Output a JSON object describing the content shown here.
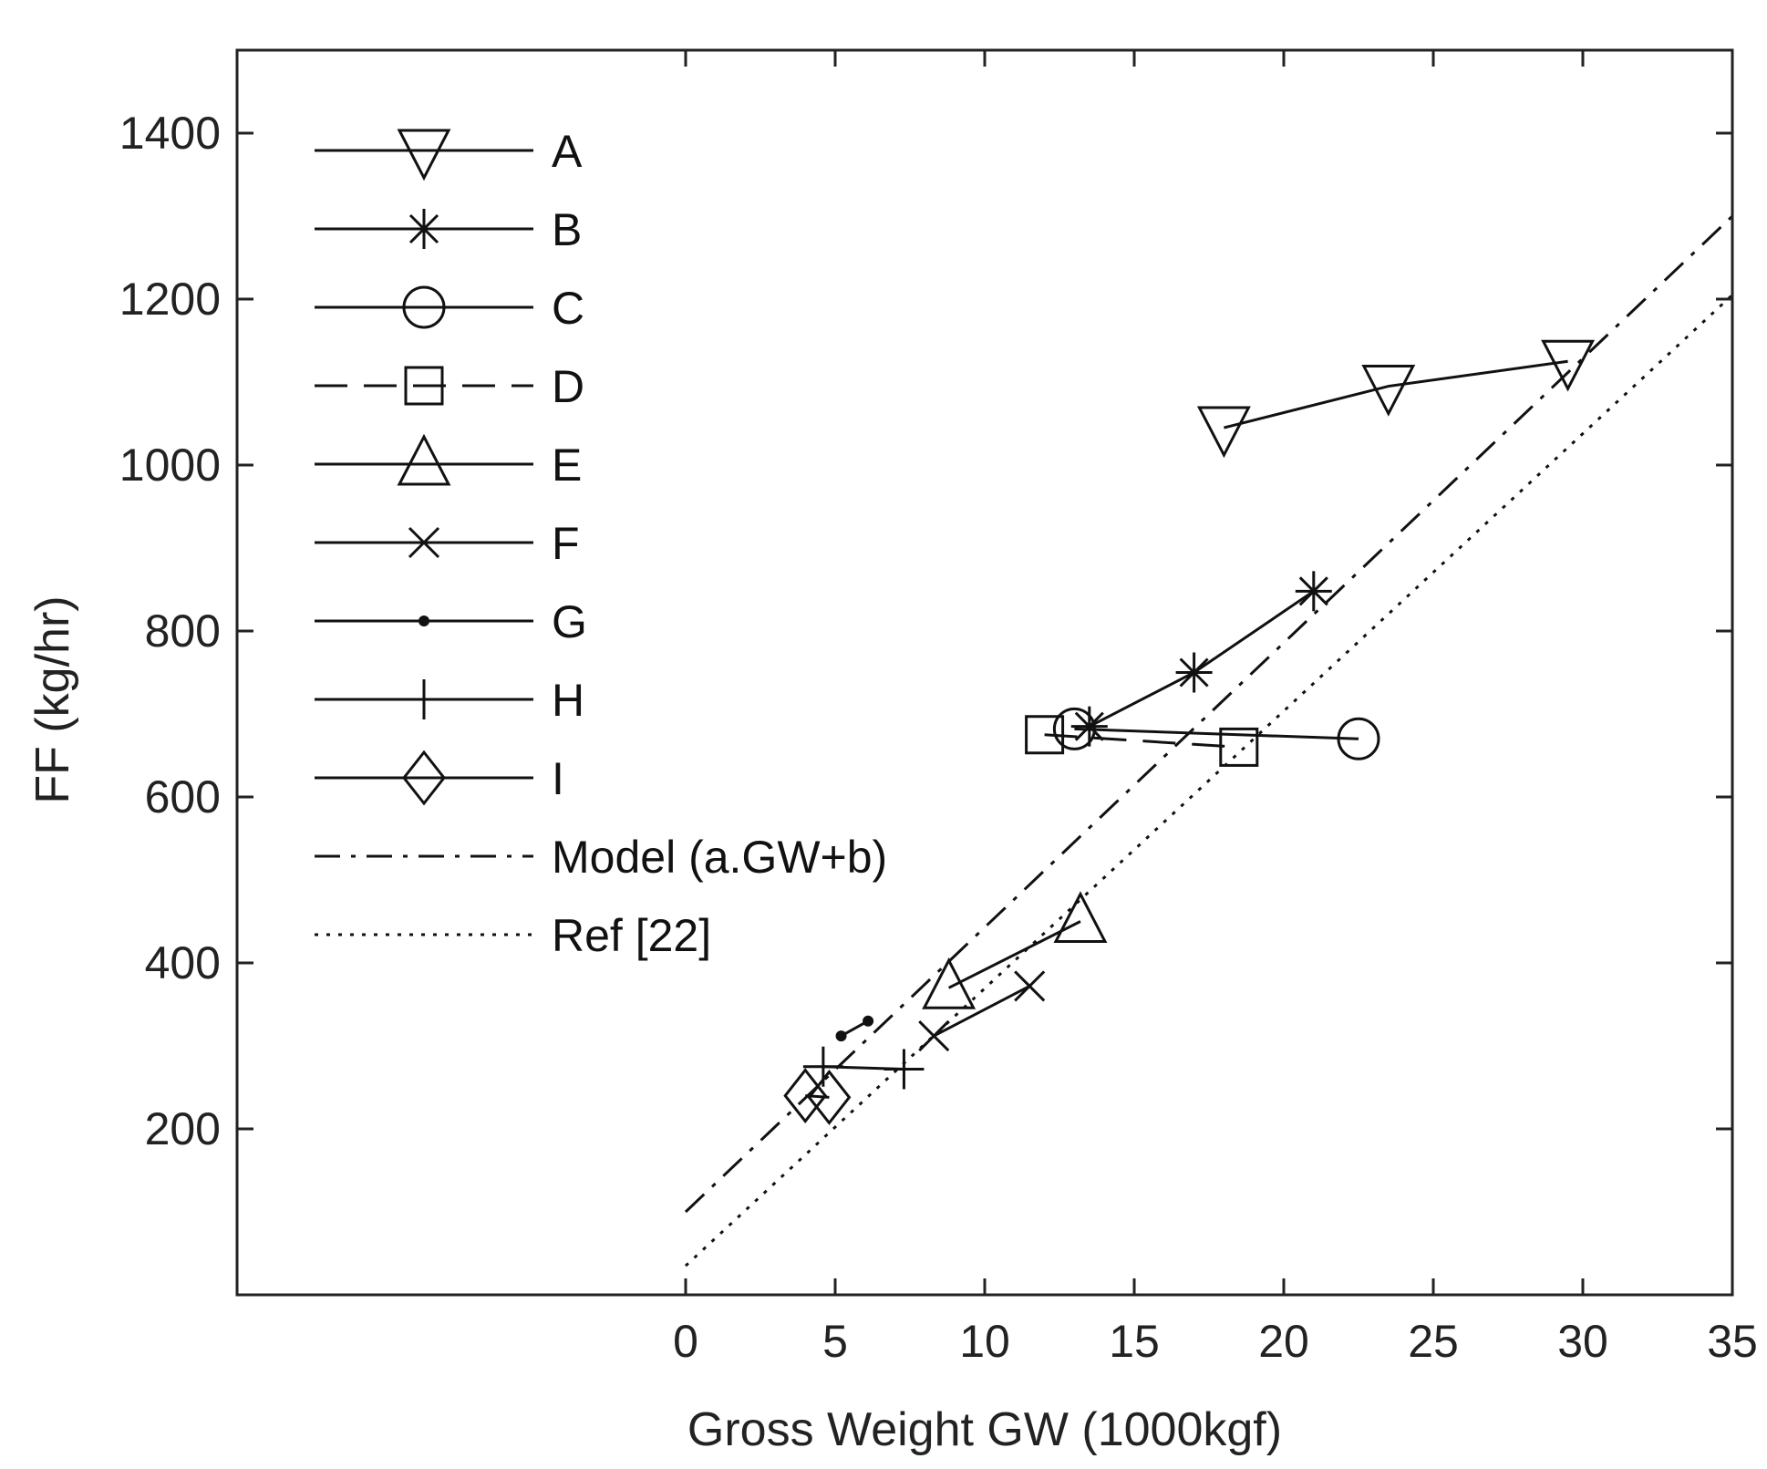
{
  "chart_data": {
    "type": "line",
    "title": "",
    "xlabel": "Gross Weight GW (1000kgf)",
    "ylabel": "FF (kg/hr)",
    "xlim": [
      -15,
      35
    ],
    "ylim": [
      0,
      1500
    ],
    "xticks": [
      0,
      5,
      10,
      15,
      20,
      25,
      30,
      35
    ],
    "yticks": [
      200,
      400,
      600,
      800,
      1000,
      1200,
      1400
    ],
    "xtick_labels": [
      "0",
      "5",
      "10",
      "15",
      "20",
      "25",
      "30",
      "35"
    ],
    "ytick_labels": [
      "200",
      "400",
      "600",
      "800",
      "1000",
      "1200",
      "1400"
    ],
    "grid": false,
    "legend_position": "top-left",
    "series": [
      {
        "name": "A",
        "marker": "triangle-down",
        "linestyle": "solid",
        "x": [
          18.0,
          23.5,
          29.5
        ],
        "y": [
          1045,
          1095,
          1125
        ]
      },
      {
        "name": "B",
        "marker": "asterisk",
        "linestyle": "solid",
        "x": [
          13.5,
          17.0,
          21.0
        ],
        "y": [
          685,
          750,
          848
        ]
      },
      {
        "name": "C",
        "marker": "circle",
        "linestyle": "solid",
        "x": [
          13.0,
          22.5
        ],
        "y": [
          682,
          670
        ]
      },
      {
        "name": "D",
        "marker": "square",
        "linestyle": "dashed",
        "x": [
          12.0,
          18.5
        ],
        "y": [
          675,
          660
        ]
      },
      {
        "name": "E",
        "marker": "triangle-up",
        "linestyle": "solid",
        "x": [
          8.8,
          13.2
        ],
        "y": [
          370,
          450
        ]
      },
      {
        "name": "F",
        "marker": "x",
        "linestyle": "solid",
        "x": [
          8.3,
          11.5
        ],
        "y": [
          312,
          372
        ]
      },
      {
        "name": "G",
        "marker": "dot",
        "linestyle": "solid",
        "x": [
          5.2,
          6.1
        ],
        "y": [
          312,
          330
        ]
      },
      {
        "name": "H",
        "marker": "plus",
        "linestyle": "solid",
        "x": [
          4.6,
          7.3
        ],
        "y": [
          275,
          272
        ]
      },
      {
        "name": "I",
        "marker": "diamond",
        "linestyle": "solid",
        "x": [
          4.0,
          4.8
        ],
        "y": [
          240,
          238
        ]
      },
      {
        "name": "Model (a.GW+b)",
        "marker": "none",
        "linestyle": "dashdot",
        "x": [
          0,
          35
        ],
        "y": [
          100,
          1300
        ]
      },
      {
        "name": "Ref [22]",
        "marker": "none",
        "linestyle": "dotted",
        "x": [
          0,
          35
        ],
        "y": [
          35,
          1205
        ]
      }
    ]
  }
}
